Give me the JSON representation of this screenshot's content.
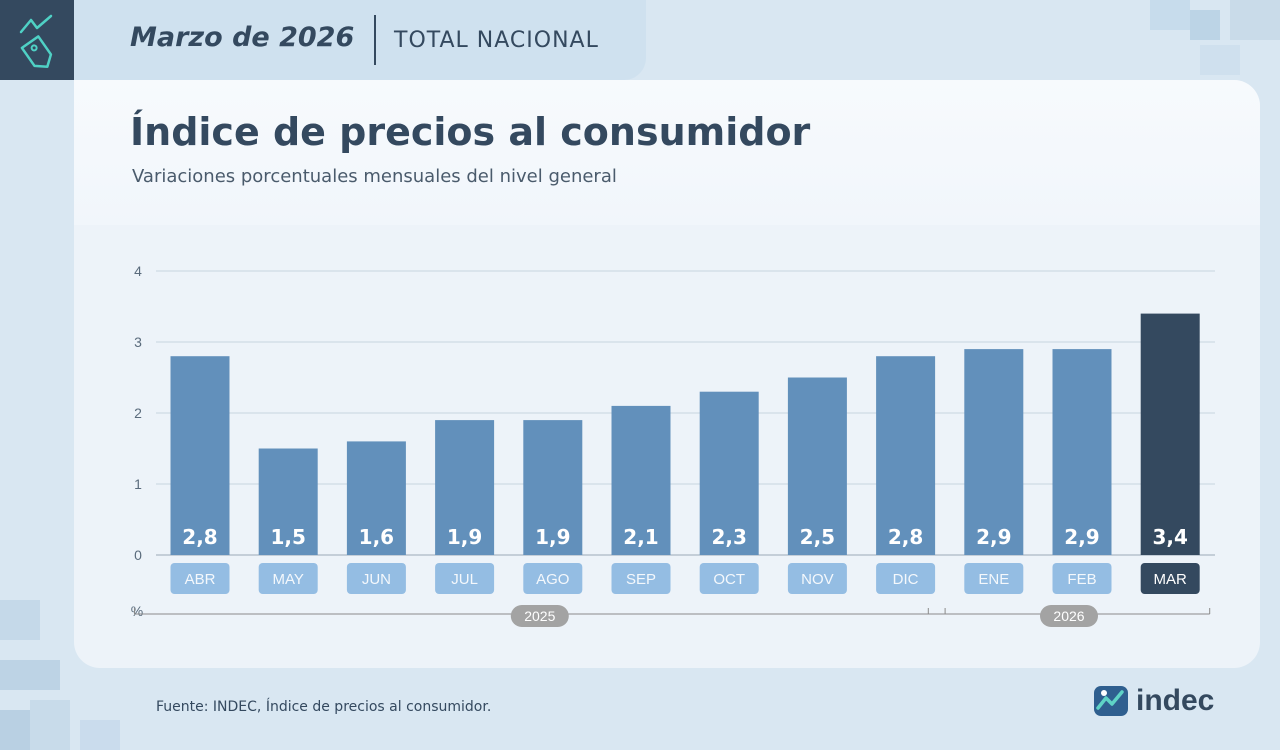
{
  "header": {
    "date": "Marzo de 2026",
    "scope": "TOTAL NACIONAL"
  },
  "icons": {
    "badge": "price-tag-icon",
    "logo": "indec-logo-icon"
  },
  "colors": {
    "bar": "#6290bb",
    "bar_highlight": "#34495f",
    "label_box": "#94bde3",
    "label_box_highlight": "#34495f",
    "year_pill": "#a3a3a3"
  },
  "chart_data": {
    "type": "bar",
    "title": "Índice de precios al consumidor",
    "subtitle": "Variaciones porcentuales mensuales del nivel general",
    "ylabel": "%",
    "ylim": [
      0,
      4
    ],
    "yticks": [
      0,
      1,
      2,
      3,
      4
    ],
    "grid": true,
    "categories": [
      "ABR",
      "MAY",
      "JUN",
      "JUL",
      "AGO",
      "SEP",
      "OCT",
      "NOV",
      "DIC",
      "ENE",
      "FEB",
      "MAR"
    ],
    "values": [
      2.8,
      1.5,
      1.6,
      1.9,
      1.9,
      2.1,
      2.3,
      2.5,
      2.8,
      2.9,
      2.9,
      3.4
    ],
    "data_labels": [
      "2,8",
      "1,5",
      "1,6",
      "1,9",
      "1,9",
      "2,1",
      "2,3",
      "2,5",
      "2,8",
      "2,9",
      "2,9",
      "3,4"
    ],
    "highlighted": "MAR",
    "year_groups": [
      {
        "label": "2025",
        "categories": [
          "ABR",
          "MAY",
          "JUN",
          "JUL",
          "AGO",
          "SEP",
          "OCT",
          "NOV",
          "DIC"
        ]
      },
      {
        "label": "2026",
        "categories": [
          "ENE",
          "FEB",
          "MAR"
        ]
      }
    ]
  },
  "footer": {
    "source": "Fuente: INDEC, Índice de precios al consumidor.",
    "logo_text": "indec"
  }
}
